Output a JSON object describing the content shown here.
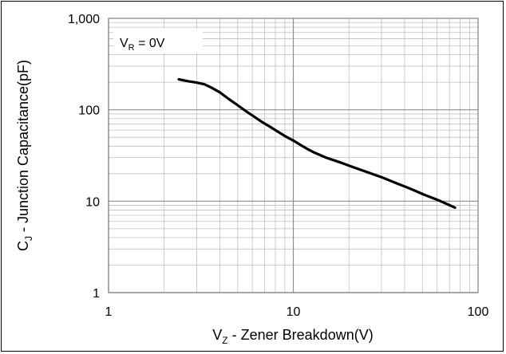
{
  "chart_data": {
    "type": "line",
    "title": "",
    "xlabel": {
      "main": "V",
      "sub": "Z",
      "rest": " - Zener Breakdown(V)"
    },
    "ylabel": {
      "main": "C",
      "sub": "J",
      "rest": " - Junction Capacitance(pF)"
    },
    "x_scale": "log",
    "y_scale": "log",
    "xlim": [
      1,
      100
    ],
    "ylim": [
      1,
      1000
    ],
    "x_ticks": [
      {
        "value": 1,
        "label": "1"
      },
      {
        "value": 10,
        "label": "10"
      },
      {
        "value": 100,
        "label": "100"
      }
    ],
    "y_ticks": [
      {
        "value": 1,
        "label": "1"
      },
      {
        "value": 10,
        "label": "10"
      },
      {
        "value": 100,
        "label": "100"
      },
      {
        "value": 1000,
        "label": "1,000"
      }
    ],
    "grid": true,
    "annotation": {
      "main": "V",
      "sub": "R",
      "rest": " = 0V"
    },
    "series": [
      {
        "color": "#000000",
        "x": [
          2.4,
          2.7,
          3.0,
          3.3,
          3.6,
          4.0,
          4.5,
          5.0,
          5.6,
          6.2,
          6.8,
          7.5,
          8.2,
          9.1,
          10,
          11,
          12,
          13,
          15,
          18,
          20,
          24,
          30,
          36,
          43,
          51,
          62,
          75
        ],
        "y": [
          215,
          205,
          198,
          190,
          175,
          155,
          130,
          112,
          95,
          83,
          73,
          65,
          58,
          51,
          46,
          41,
          37,
          34,
          30,
          26.5,
          24.5,
          21.5,
          18.3,
          15.8,
          13.7,
          11.8,
          10.1,
          8.5
        ]
      }
    ]
  }
}
